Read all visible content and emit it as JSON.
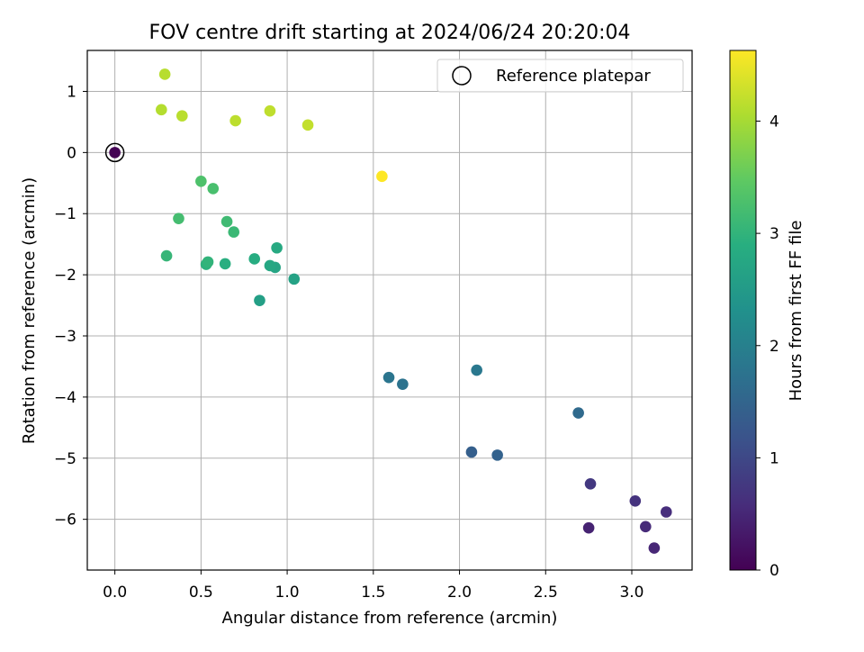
{
  "chart_data": {
    "type": "scatter",
    "title": "FOV centre drift starting at 2024/06/24 20:20:04",
    "xlabel": "Angular distance from reference (arcmin)",
    "ylabel": "Rotation from reference (arcmin)",
    "xlim": [
      -0.16,
      3.35
    ],
    "ylim": [
      -6.83,
      1.67
    ],
    "xticks": [
      0.0,
      0.5,
      1.0,
      1.5,
      2.0,
      2.5,
      3.0
    ],
    "xtick_labels": [
      "0.0",
      "0.5",
      "1.0",
      "1.5",
      "2.0",
      "2.5",
      "3.0"
    ],
    "yticks": [
      -6,
      -5,
      -4,
      -3,
      -2,
      -1,
      0,
      1
    ],
    "ytick_labels": [
      "−6",
      "−5",
      "−4",
      "−3",
      "−2",
      "−1",
      "0",
      "1"
    ],
    "grid": true,
    "legend_position": "top-right",
    "colormap": "viridis",
    "colorbar": {
      "label": "Hours from first FF file",
      "range": [
        0,
        4.63
      ],
      "ticks": [
        0,
        1,
        2,
        3,
        4
      ],
      "tick_labels": [
        "0",
        "1",
        "2",
        "3",
        "4"
      ]
    },
    "reference": {
      "label": "Reference platepar",
      "x": 0.0,
      "y": 0.0,
      "hours": 0.0,
      "marker": "open-circle"
    },
    "points": [
      {
        "x": 0.0,
        "y": 0.0,
        "hours": 0.0
      },
      {
        "x": 2.75,
        "y": -6.14,
        "hours": 0.45
      },
      {
        "x": 3.13,
        "y": -6.47,
        "hours": 0.5
      },
      {
        "x": 3.08,
        "y": -6.12,
        "hours": 0.55
      },
      {
        "x": 3.2,
        "y": -5.88,
        "hours": 0.6
      },
      {
        "x": 3.02,
        "y": -5.7,
        "hours": 0.68
      },
      {
        "x": 2.76,
        "y": -5.42,
        "hours": 0.75
      },
      {
        "x": 2.07,
        "y": -4.9,
        "hours": 1.4
      },
      {
        "x": 2.22,
        "y": -4.95,
        "hours": 1.45
      },
      {
        "x": 2.69,
        "y": -4.26,
        "hours": 1.6
      },
      {
        "x": 1.67,
        "y": -3.79,
        "hours": 1.75
      },
      {
        "x": 1.59,
        "y": -3.68,
        "hours": 1.8
      },
      {
        "x": 2.1,
        "y": -3.56,
        "hours": 1.85
      },
      {
        "x": 0.84,
        "y": -2.42,
        "hours": 2.6
      },
      {
        "x": 1.04,
        "y": -2.07,
        "hours": 2.65
      },
      {
        "x": 0.93,
        "y": -1.88,
        "hours": 2.7
      },
      {
        "x": 0.9,
        "y": -1.85,
        "hours": 2.75
      },
      {
        "x": 0.94,
        "y": -1.56,
        "hours": 2.8
      },
      {
        "x": 0.81,
        "y": -1.74,
        "hours": 2.85
      },
      {
        "x": 0.64,
        "y": -1.82,
        "hours": 2.9
      },
      {
        "x": 0.53,
        "y": -1.83,
        "hours": 2.95
      },
      {
        "x": 0.54,
        "y": -1.79,
        "hours": 3.0
      },
      {
        "x": 0.3,
        "y": -1.69,
        "hours": 3.05
      },
      {
        "x": 0.69,
        "y": -1.3,
        "hours": 3.1
      },
      {
        "x": 0.65,
        "y": -1.13,
        "hours": 3.15
      },
      {
        "x": 0.37,
        "y": -1.08,
        "hours": 3.2
      },
      {
        "x": 0.57,
        "y": -0.59,
        "hours": 3.25
      },
      {
        "x": 0.5,
        "y": -0.47,
        "hours": 3.3
      },
      {
        "x": 0.27,
        "y": 0.7,
        "hours": 4.1
      },
      {
        "x": 0.29,
        "y": 1.28,
        "hours": 4.12
      },
      {
        "x": 0.39,
        "y": 0.6,
        "hours": 4.14
      },
      {
        "x": 0.7,
        "y": 0.52,
        "hours": 4.16
      },
      {
        "x": 0.9,
        "y": 0.68,
        "hours": 4.18
      },
      {
        "x": 1.12,
        "y": 0.45,
        "hours": 4.2
      },
      {
        "x": 1.55,
        "y": -0.39,
        "hours": 4.63
      }
    ]
  }
}
